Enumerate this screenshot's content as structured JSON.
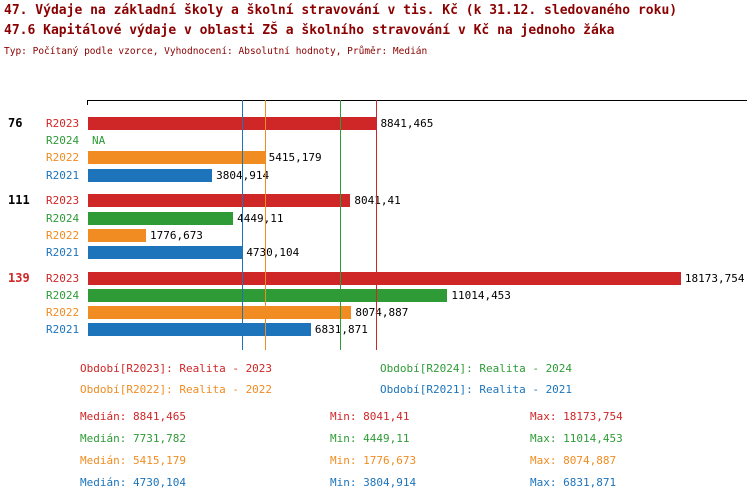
{
  "colors": {
    "red": "#cf2627",
    "green": "#2e9b37",
    "orange": "#f08c21",
    "blue": "#1d74bb",
    "black": "#000000",
    "title": "#8b0000"
  },
  "chart_data": {
    "type": "bar",
    "orientation": "horizontal",
    "title": "47. Výdaje na základní školy a školní stravování v tis. Kč (k 31.12. sledovaného roku)",
    "subtitle": "47.6 Kapitálové výdaje v oblasti ZŠ a školního stravování v Kč na jednoho žáka",
    "meta": "Typ: Počítaný podle vzorce, Vyhodnocení: Absolutní hodnoty, Průměr: Medián",
    "xmax": 20200,
    "xlim": [
      0,
      20200
    ],
    "grid": false,
    "legend_position": "bottom",
    "groups": [
      {
        "label": "76",
        "label_color": "black",
        "rows": [
          {
            "series": "R2023",
            "color": "red",
            "value": 8841.465,
            "value_label": "8841,465"
          },
          {
            "series": "R2024",
            "color": "green",
            "value": null,
            "value_label": "NA"
          },
          {
            "series": "R2022",
            "color": "orange",
            "value": 5415.179,
            "value_label": "5415,179"
          },
          {
            "series": "R2021",
            "color": "blue",
            "value": 3804.914,
            "value_label": "3804,914"
          }
        ]
      },
      {
        "label": "111",
        "label_color": "black",
        "rows": [
          {
            "series": "R2023",
            "color": "red",
            "value": 8041.41,
            "value_label": "8041,41"
          },
          {
            "series": "R2024",
            "color": "green",
            "value": 4449.11,
            "value_label": "4449,11"
          },
          {
            "series": "R2022",
            "color": "orange",
            "value": 1776.673,
            "value_label": "1776,673"
          },
          {
            "series": "R2021",
            "color": "blue",
            "value": 4730.104,
            "value_label": "4730,104"
          }
        ]
      },
      {
        "label": "139",
        "label_color": "red",
        "rows": [
          {
            "series": "R2023",
            "color": "red",
            "value": 18173.754,
            "value_label": "18173,754"
          },
          {
            "series": "R2024",
            "color": "green",
            "value": 11014.453,
            "value_label": "11014,453"
          },
          {
            "series": "R2022",
            "color": "orange",
            "value": 8074.887,
            "value_label": "8074,887"
          },
          {
            "series": "R2021",
            "color": "blue",
            "value": 6831.871,
            "value_label": "6831,871"
          }
        ]
      }
    ],
    "median_lines": [
      {
        "color": "red",
        "value": 8841.465
      },
      {
        "color": "green",
        "value": 7731.782
      },
      {
        "color": "orange",
        "value": 5415.179
      },
      {
        "color": "blue",
        "value": 4730.104
      }
    ]
  },
  "legend": {
    "items": [
      {
        "color": "red",
        "label": "Období[R2023]: Realita - 2023"
      },
      {
        "color": "green",
        "label": "Období[R2024]: Realita - 2024"
      },
      {
        "color": "orange",
        "label": "Období[R2022]: Realita - 2022"
      },
      {
        "color": "blue",
        "label": "Období[R2021]: Realita - 2021"
      }
    ]
  },
  "stats": {
    "rows": [
      {
        "color": "red",
        "median": "Medián: 8841,465",
        "min": "Min: 8041,41",
        "max": "Max: 18173,754"
      },
      {
        "color": "green",
        "median": "Medián: 7731,782",
        "min": "Min: 4449,11",
        "max": "Max: 11014,453"
      },
      {
        "color": "orange",
        "median": "Medián: 5415,179",
        "min": "Min: 1776,673",
        "max": "Max: 8074,887"
      },
      {
        "color": "blue",
        "median": "Medián: 4730,104",
        "min": "Min: 3804,914",
        "max": "Max: 6831,871"
      }
    ]
  }
}
